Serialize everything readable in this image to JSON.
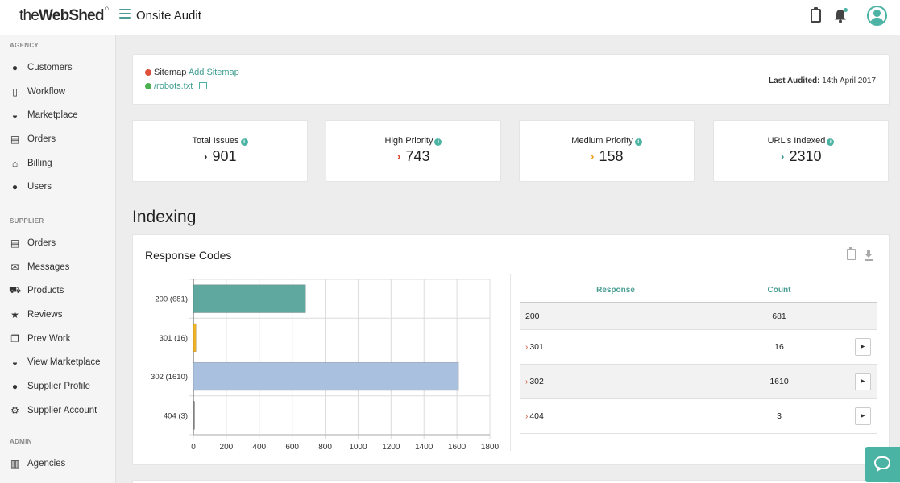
{
  "header": {
    "logo_pre": "the",
    "logo_brand": "WebShed",
    "title": "Onsite Audit"
  },
  "sidebar": {
    "sections": [
      {
        "label": "AGENCY",
        "items": [
          {
            "label": "Customers",
            "icon": "account-circle-icon"
          },
          {
            "label": "Workflow",
            "icon": "clipboard-icon"
          },
          {
            "label": "Marketplace",
            "icon": "basket-icon"
          },
          {
            "label": "Orders",
            "icon": "inbox-icon"
          },
          {
            "label": "Billing",
            "icon": "bank-icon"
          },
          {
            "label": "Users",
            "icon": "people-icon"
          }
        ]
      },
      {
        "label": "SUPPLIER",
        "items": [
          {
            "label": "Orders",
            "icon": "inbox-icon"
          },
          {
            "label": "Messages",
            "icon": "mail-icon"
          },
          {
            "label": "Products",
            "icon": "cart-icon"
          },
          {
            "label": "Reviews",
            "icon": "star-icon"
          },
          {
            "label": "Prev Work",
            "icon": "library-icon"
          },
          {
            "label": "View Marketplace",
            "icon": "basket-icon"
          },
          {
            "label": "Supplier Profile",
            "icon": "account-circle-icon"
          },
          {
            "label": "Supplier Account",
            "icon": "gear-icon"
          }
        ]
      },
      {
        "label": "ADMIN",
        "items": [
          {
            "label": "Agencies",
            "icon": "building-icon"
          }
        ]
      }
    ]
  },
  "status": {
    "sitemap_label": "Sitemap",
    "sitemap_link": "Add Sitemap",
    "robots_link": "/robots.txt",
    "last_audited_label": "Last Audited:",
    "last_audited_value": "14th April 2017",
    "sitemap_dot_color": "#e0503a",
    "robots_dot_color": "#4caf50"
  },
  "stats": [
    {
      "label": "Total Issues",
      "value": "901",
      "chevron_color": "#333333"
    },
    {
      "label": "High Priority",
      "value": "743",
      "chevron_color": "#d9482b"
    },
    {
      "label": "Medium Priority",
      "value": "158",
      "chevron_color": "#f0a020"
    },
    {
      "label": "URL's Indexed",
      "value": "2310",
      "chevron_color": "#4a9e93"
    }
  ],
  "section_title": "Indexing",
  "response_codes": {
    "title": "Response Codes",
    "table": {
      "headers": [
        "Response",
        "Count"
      ],
      "rows": [
        {
          "code": "200",
          "count": "681",
          "expandable": false
        },
        {
          "code": "301",
          "count": "16",
          "expandable": true
        },
        {
          "code": "302",
          "count": "1610",
          "expandable": true
        },
        {
          "code": "404",
          "count": "3",
          "expandable": true
        }
      ]
    }
  },
  "chart_data": {
    "type": "bar",
    "orientation": "horizontal",
    "categories": [
      "200 (681)",
      "301 (16)",
      "302 (1610)",
      "404 (3)"
    ],
    "values": [
      681,
      16,
      1610,
      3
    ],
    "colors": [
      "#5fa89f",
      "#f0b429",
      "#a9c0de",
      "#888888"
    ],
    "xlim": [
      0,
      1800
    ],
    "xticks": [
      0,
      200,
      400,
      600,
      800,
      1000,
      1200,
      1400,
      1600,
      1800
    ],
    "grid": true
  }
}
